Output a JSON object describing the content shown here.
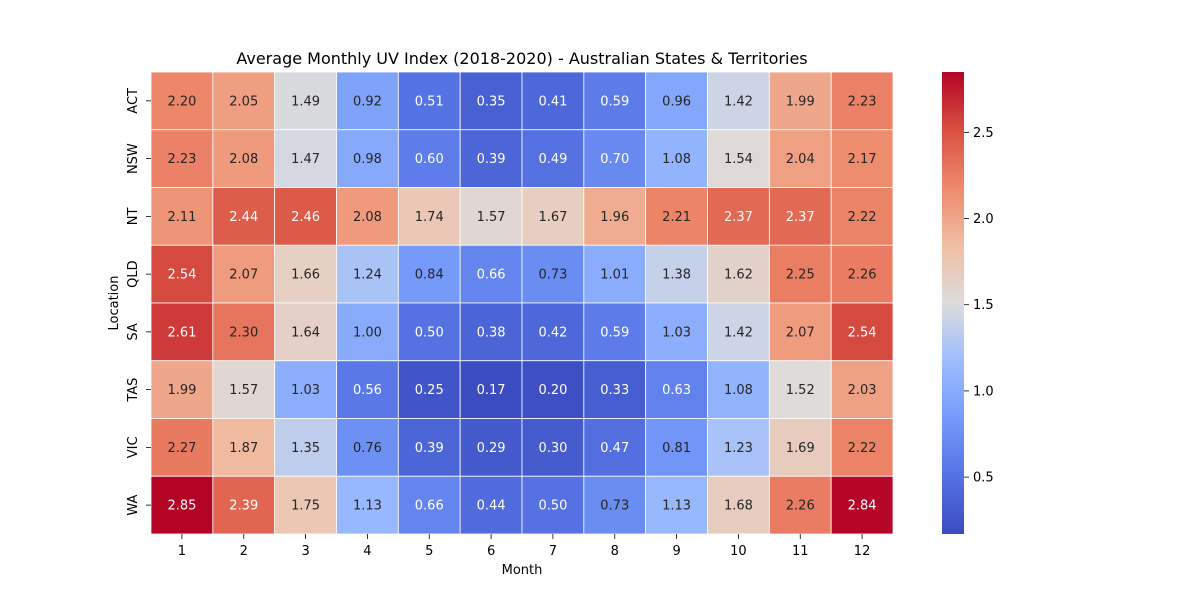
{
  "chart_data": {
    "type": "heatmap",
    "title": "Average Monthly UV Index (2018-2020) - Australian States & Territories",
    "xlabel": "Month",
    "ylabel": "Location",
    "x": [
      "1",
      "2",
      "3",
      "4",
      "5",
      "6",
      "7",
      "8",
      "9",
      "10",
      "11",
      "12"
    ],
    "y": [
      "ACT",
      "NSW",
      "NT",
      "QLD",
      "SA",
      "TAS",
      "VIC",
      "WA"
    ],
    "values": [
      [
        2.2,
        2.05,
        1.49,
        0.92,
        0.51,
        0.35,
        0.41,
        0.59,
        0.96,
        1.42,
        1.99,
        2.23
      ],
      [
        2.23,
        2.08,
        1.47,
        0.98,
        0.6,
        0.39,
        0.49,
        0.7,
        1.08,
        1.54,
        2.04,
        2.17
      ],
      [
        2.11,
        2.44,
        2.46,
        2.08,
        1.74,
        1.57,
        1.67,
        1.96,
        2.21,
        2.37,
        2.37,
        2.22
      ],
      [
        2.54,
        2.07,
        1.66,
        1.24,
        0.84,
        0.66,
        0.73,
        1.01,
        1.38,
        1.62,
        2.25,
        2.26
      ],
      [
        2.61,
        2.3,
        1.64,
        1.0,
        0.5,
        0.38,
        0.42,
        0.59,
        1.03,
        1.42,
        2.07,
        2.54
      ],
      [
        1.99,
        1.57,
        1.03,
        0.56,
        0.25,
        0.17,
        0.2,
        0.33,
        0.63,
        1.08,
        1.52,
        2.03
      ],
      [
        2.27,
        1.87,
        1.35,
        0.76,
        0.39,
        0.29,
        0.3,
        0.47,
        0.81,
        1.23,
        1.69,
        2.22
      ],
      [
        2.85,
        2.39,
        1.75,
        1.13,
        0.66,
        0.44,
        0.5,
        0.73,
        1.13,
        1.68,
        2.26,
        2.84
      ]
    ],
    "colormap": "coolwarm",
    "color_range": [
      0.17,
      2.85
    ],
    "colorbar_ticks": [
      0.5,
      1.0,
      1.5,
      2.0,
      2.5
    ],
    "value_format": "2 decimals",
    "grid_lines_color": "#ffffff"
  }
}
